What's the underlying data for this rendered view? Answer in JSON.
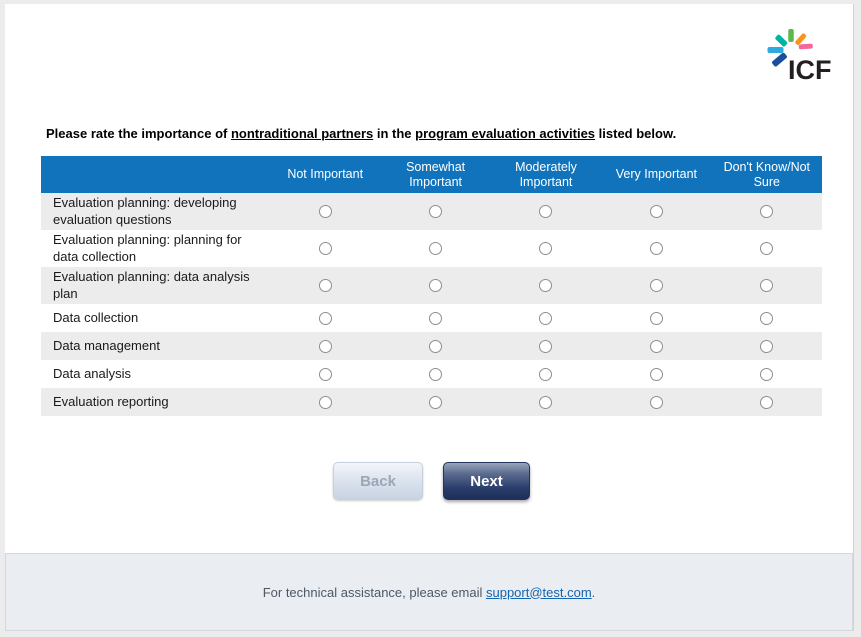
{
  "colors": {
    "header_blue": "#1173bc",
    "row_stripe": "#ececec",
    "next_button_dark": "#1e3058",
    "link_blue": "#1464af",
    "footer_bg": "#eaeef2"
  },
  "logo": {
    "text": "ICF",
    "ray_colors": {
      "left": "#2aabe2",
      "upper_left": "#00b3a6",
      "top": "#5cb84a",
      "upper_right": "#f79420",
      "right": "#f4679d",
      "lower_left": "#1b4e9b"
    }
  },
  "question": {
    "part1": "Please rate the importance of ",
    "underlined1": "nontraditional partners",
    "part2": " in the ",
    "underlined2": "program evaluation activities",
    "part3": " listed below."
  },
  "matrix": {
    "columns": [
      "Not Important",
      "Somewhat Important",
      "Moderately Important",
      "Very Important",
      "Don't Know/Not Sure"
    ],
    "rows": [
      "Evaluation planning: developing evaluation questions",
      "Evaluation planning: planning for data collection",
      "Evaluation planning: data analysis plan",
      "Data collection",
      "Data management",
      "Data analysis",
      "Evaluation reporting"
    ]
  },
  "buttons": {
    "back": "Back",
    "next": "Next"
  },
  "footer": {
    "before_link": "For technical assistance, please email ",
    "link_text": "support@test.com",
    "after_link": "."
  }
}
